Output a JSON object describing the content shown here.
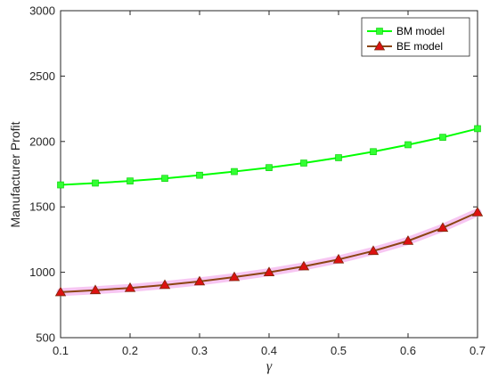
{
  "chart_data": {
    "type": "line",
    "title": "",
    "xlabel": "γ",
    "ylabel": "Manufacturer Profit",
    "xlim": [
      0.1,
      0.7
    ],
    "ylim": [
      500,
      3000
    ],
    "xticks": [
      "0.1",
      "0.2",
      "0.3",
      "0.4",
      "0.5",
      "0.6",
      "0.7"
    ],
    "yticks": [
      "500",
      "1000",
      "1500",
      "2000",
      "2500",
      "3000"
    ],
    "grid": false,
    "legend_position": "top-right",
    "x": [
      0.1,
      0.15,
      0.2,
      0.25,
      0.3,
      0.35,
      0.4,
      0.45,
      0.5,
      0.55,
      0.6,
      0.65,
      0.7
    ],
    "series": [
      {
        "name": "BM model",
        "marker": "square",
        "color": "#00ff00",
        "marker_color": "#33ff33",
        "values": [
          1668,
          1682,
          1698,
          1718,
          1742,
          1770,
          1800,
          1835,
          1876,
          1922,
          1975,
          2032,
          2098
        ]
      },
      {
        "name": "BE model",
        "marker": "triangle",
        "color": "#8b4513",
        "marker_color": "#dd1111",
        "values": [
          848,
          863,
          880,
          903,
          930,
          963,
          1000,
          1045,
          1098,
          1163,
          1240,
          1340,
          1458
        ]
      }
    ]
  }
}
